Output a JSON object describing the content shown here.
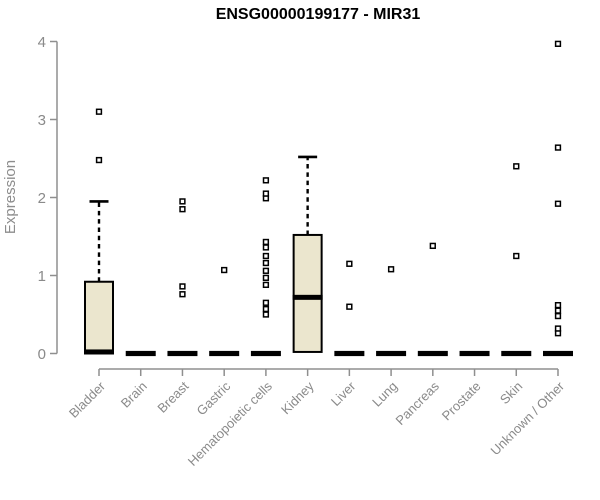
{
  "chart_data": {
    "type": "boxplot",
    "title": "ENSG00000199177 - MIR31",
    "ylabel": "Expression",
    "xlabel": "",
    "ylim": [
      0,
      4
    ],
    "yticks": [
      0,
      1,
      2,
      3,
      4
    ],
    "grid": false,
    "legend": "none",
    "categories": [
      "Bladder",
      "Brain",
      "Breast",
      "Gastric",
      "Hematopoietic cells",
      "Kidney",
      "Liver",
      "Lung",
      "Pancreas",
      "Prostate",
      "Skin",
      "Unknown / Other"
    ],
    "series": [
      {
        "name": "Bladder",
        "q1": 0,
        "median": 0.02,
        "q3": 0.92,
        "whisker_low": 0,
        "whisker_high": 1.95,
        "outliers": [
          2.48,
          3.1
        ]
      },
      {
        "name": "Brain",
        "q1": 0,
        "median": 0,
        "q3": 0,
        "whisker_low": 0,
        "whisker_high": 0,
        "outliers": []
      },
      {
        "name": "Breast",
        "q1": 0,
        "median": 0,
        "q3": 0,
        "whisker_low": 0,
        "whisker_high": 0,
        "outliers": [
          0.76,
          0.86,
          1.85,
          1.95
        ]
      },
      {
        "name": "Gastric",
        "q1": 0,
        "median": 0,
        "q3": 0,
        "whisker_low": 0,
        "whisker_high": 0,
        "outliers": [
          1.07
        ]
      },
      {
        "name": "Hematopoietic cells",
        "q1": 0,
        "median": 0,
        "q3": 0,
        "whisker_low": 0,
        "whisker_high": 0,
        "outliers": [
          0.5,
          0.57,
          0.65,
          0.88,
          0.97,
          1.06,
          1.16,
          1.25,
          1.36,
          1.43,
          1.99,
          2.05,
          2.22
        ]
      },
      {
        "name": "Kidney",
        "q1": 0.02,
        "median": 0.72,
        "q3": 1.52,
        "whisker_low": 0.02,
        "whisker_high": 2.52,
        "outliers": []
      },
      {
        "name": "Liver",
        "q1": 0,
        "median": 0,
        "q3": 0,
        "whisker_low": 0,
        "whisker_high": 0,
        "outliers": [
          0.6,
          1.15
        ]
      },
      {
        "name": "Lung",
        "q1": 0,
        "median": 0,
        "q3": 0,
        "whisker_low": 0,
        "whisker_high": 0,
        "outliers": [
          1.08
        ]
      },
      {
        "name": "Pancreas",
        "q1": 0,
        "median": 0,
        "q3": 0,
        "whisker_low": 0,
        "whisker_high": 0,
        "outliers": [
          1.38
        ]
      },
      {
        "name": "Prostate",
        "q1": 0,
        "median": 0,
        "q3": 0,
        "whisker_low": 0,
        "whisker_high": 0,
        "outliers": []
      },
      {
        "name": "Skin",
        "q1": 0,
        "median": 0,
        "q3": 0,
        "whisker_low": 0,
        "whisker_high": 0,
        "outliers": [
          1.25,
          2.4
        ]
      },
      {
        "name": "Unknown / Other",
        "q1": 0,
        "median": 0,
        "q3": 0,
        "whisker_low": 0,
        "whisker_high": 0,
        "outliers": [
          0.26,
          0.32,
          0.48,
          0.55,
          0.62,
          1.92,
          2.64,
          3.97
        ]
      }
    ],
    "colors": {
      "box_fill": "#EBE6CE",
      "box_stroke": "#000000",
      "median": "#000000",
      "whisker": "#000000",
      "outlier_fill": "#FFFFFF",
      "outlier_stroke": "#000000",
      "axis_line": "#8f8f8f",
      "tick_text": "#8a8a8a",
      "title_text": "#000000",
      "background": "#FFFFFF"
    }
  }
}
